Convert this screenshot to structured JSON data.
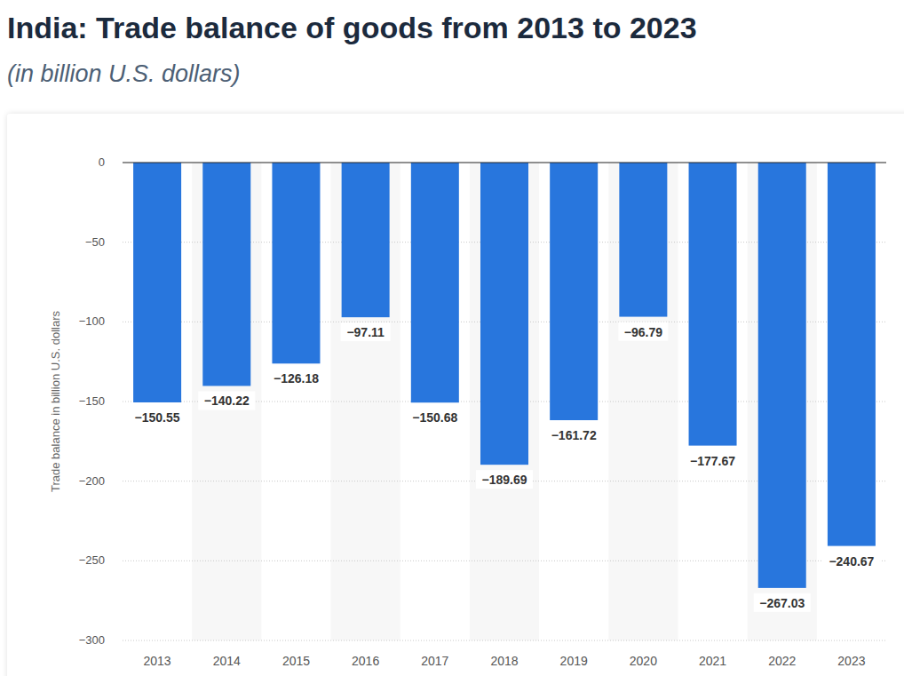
{
  "chart_data": {
    "type": "bar",
    "title": "India: Trade balance of goods from 2013 to 2023",
    "subtitle": "(in billion U.S. dollars)",
    "y_label": "Trade balance in billion U.S. dollars",
    "categories": [
      "2013",
      "2014",
      "2015",
      "2016",
      "2017",
      "2018",
      "2019",
      "2020",
      "2021",
      "2022",
      "2023"
    ],
    "values": [
      -150.55,
      -140.22,
      -126.18,
      -97.11,
      -150.68,
      -189.69,
      -161.72,
      -96.79,
      -177.67,
      -267.03,
      -240.67
    ],
    "value_labels": [
      "−150.55",
      "−140.22",
      "−126.18",
      "−97.11",
      "−150.68",
      "−189.69",
      "−161.72",
      "−96.79",
      "−177.67",
      "−267.03",
      "−240.67"
    ],
    "color": "#2876dd",
    "ylim": [
      -300,
      0
    ],
    "yticks": [
      0,
      {
        "value": -50,
        "label": "−50"
      },
      {
        "value": -100,
        "label": "−100"
      },
      {
        "value": -150,
        "label": "−150"
      },
      {
        "value": -200,
        "label": "−200"
      },
      {
        "value": -250,
        "label": "−250"
      },
      {
        "value": -300,
        "label": "−300"
      }
    ],
    "grid": true,
    "data_labels": true
  }
}
